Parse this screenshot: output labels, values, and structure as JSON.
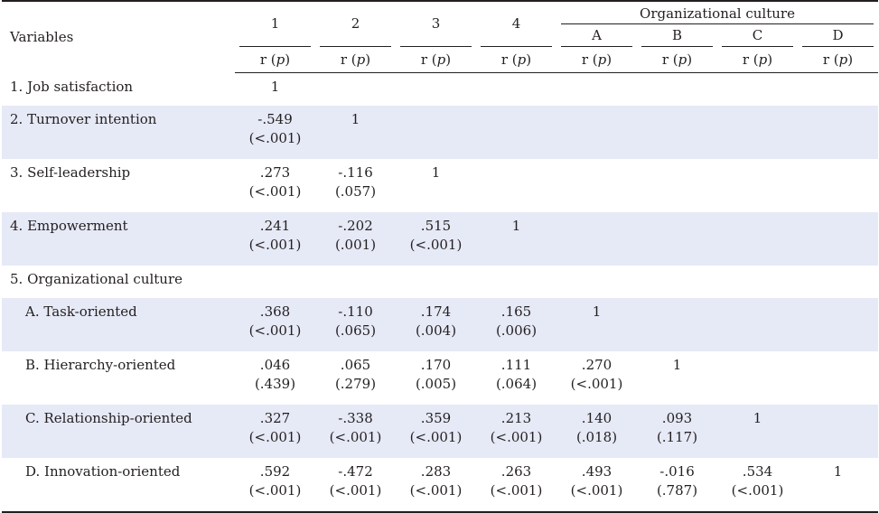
{
  "header": {
    "variables_label": "Variables",
    "col_1": "1",
    "col_2": "2",
    "col_3": "3",
    "col_4": "4",
    "group_title": "Organizational culture",
    "col_a": "A",
    "col_b": "B",
    "col_c": "C",
    "col_d": "D",
    "rp_prefix": "r (",
    "rp_p": "p",
    "rp_suffix": ")"
  },
  "rows": [
    {
      "label": "1. Job satisfaction",
      "indent": false,
      "cells": [
        [
          "1",
          ""
        ],
        [
          "",
          ""
        ],
        [
          "",
          ""
        ],
        [
          "",
          ""
        ],
        [
          "",
          ""
        ],
        [
          "",
          ""
        ],
        [
          "",
          ""
        ],
        [
          "",
          ""
        ]
      ]
    },
    {
      "label": "2. Turnover intention",
      "indent": false,
      "cells": [
        [
          "-.549",
          "(<.001)"
        ],
        [
          "1",
          ""
        ],
        [
          "",
          ""
        ],
        [
          "",
          ""
        ],
        [
          "",
          ""
        ],
        [
          "",
          ""
        ],
        [
          "",
          ""
        ],
        [
          "",
          ""
        ]
      ]
    },
    {
      "label": "3. Self-leadership",
      "indent": false,
      "cells": [
        [
          ".273",
          "(<.001)"
        ],
        [
          "-.116",
          "(.057)"
        ],
        [
          "1",
          ""
        ],
        [
          "",
          ""
        ],
        [
          "",
          ""
        ],
        [
          "",
          ""
        ],
        [
          "",
          ""
        ],
        [
          "",
          ""
        ]
      ]
    },
    {
      "label": "4. Empowerment",
      "indent": false,
      "cells": [
        [
          ".241",
          "(<.001)"
        ],
        [
          "-.202",
          "(.001)"
        ],
        [
          ".515",
          "(<.001)"
        ],
        [
          "1",
          ""
        ],
        [
          "",
          ""
        ],
        [
          "",
          ""
        ],
        [
          "",
          ""
        ],
        [
          "",
          ""
        ]
      ]
    },
    {
      "label": "5. Organizational culture",
      "indent": false,
      "cells": [
        [
          "",
          ""
        ],
        [
          "",
          ""
        ],
        [
          "",
          ""
        ],
        [
          "",
          ""
        ],
        [
          "",
          ""
        ],
        [
          "",
          ""
        ],
        [
          "",
          ""
        ],
        [
          "",
          ""
        ]
      ]
    },
    {
      "label": "A. Task-oriented",
      "indent": true,
      "cells": [
        [
          ".368",
          "(<.001)"
        ],
        [
          "-.110",
          "(.065)"
        ],
        [
          ".174",
          "(.004)"
        ],
        [
          ".165",
          "(.006)"
        ],
        [
          "1",
          ""
        ],
        [
          "",
          ""
        ],
        [
          "",
          ""
        ],
        [
          "",
          ""
        ]
      ]
    },
    {
      "label": "B. Hierarchy-oriented",
      "indent": true,
      "cells": [
        [
          ".046",
          "(.439)"
        ],
        [
          ".065",
          "(.279)"
        ],
        [
          ".170",
          "(.005)"
        ],
        [
          ".111",
          "(.064)"
        ],
        [
          ".270",
          "(<.001)"
        ],
        [
          "1",
          ""
        ],
        [
          "",
          ""
        ],
        [
          "",
          ""
        ]
      ]
    },
    {
      "label": "C. Relationship-oriented",
      "indent": true,
      "cells": [
        [
          ".327",
          "(<.001)"
        ],
        [
          "-.338",
          "(<.001)"
        ],
        [
          ".359",
          "(<.001)"
        ],
        [
          ".213",
          "(<.001)"
        ],
        [
          ".140",
          "(.018)"
        ],
        [
          ".093",
          "(.117)"
        ],
        [
          "1",
          ""
        ],
        [
          "",
          ""
        ]
      ]
    },
    {
      "label": "D. Innovation-oriented",
      "indent": true,
      "cells": [
        [
          ".592",
          "(<.001)"
        ],
        [
          "-.472",
          "(<.001)"
        ],
        [
          ".283",
          "(<.001)"
        ],
        [
          ".263",
          "(<.001)"
        ],
        [
          ".493",
          "(<.001)"
        ],
        [
          "-.016",
          "(.787)"
        ],
        [
          ".534",
          "(<.001)"
        ],
        [
          "1",
          ""
        ]
      ]
    }
  ],
  "colors": {
    "shade": "#e6e9f6",
    "text": "#231f20"
  }
}
